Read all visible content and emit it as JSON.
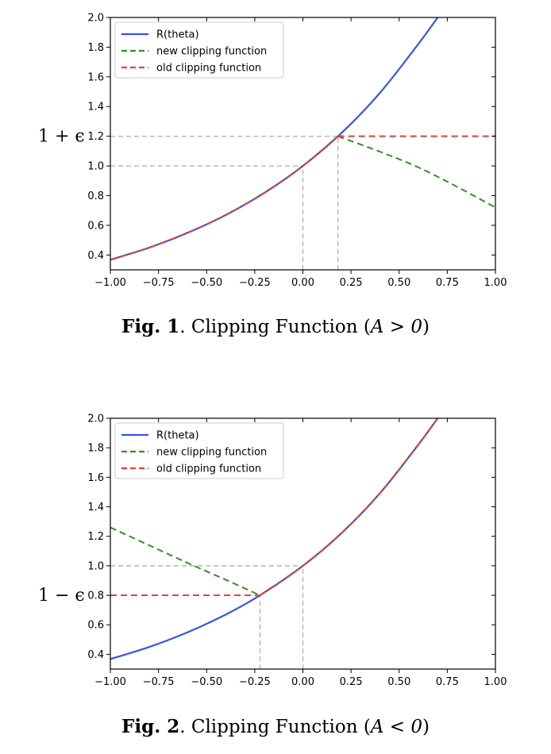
{
  "figures": [
    {
      "caption": {
        "label": "Fig. 1",
        "text": ". Clipping Function (",
        "math": "A > 0",
        "close": ")"
      },
      "eps_label": "1 + ϵ"
    },
    {
      "caption": {
        "label": "Fig. 2",
        "text": ". Clipping Function (",
        "math": "A < 0",
        "close": ")"
      },
      "eps_label": "1 − ϵ"
    }
  ],
  "chart_data": [
    {
      "type": "line",
      "xlim": [
        -1.0,
        1.0
      ],
      "ylim": [
        0.3,
        2.0
      ],
      "x_ticks": [
        -1.0,
        -0.75,
        -0.5,
        -0.25,
        0.0,
        0.25,
        0.5,
        0.75,
        1.0
      ],
      "x_tick_labels": [
        "−1.00",
        "−0.75",
        "−0.50",
        "−0.25",
        "0.00",
        "0.25",
        "0.50",
        "0.75",
        "1.00"
      ],
      "y_ticks": [
        0.4,
        0.6,
        0.8,
        1.0,
        1.2,
        1.4,
        1.6,
        1.8,
        2.0
      ],
      "y_tick_labels": [
        "0.4",
        "0.6",
        "0.8",
        "1.0",
        "1.2",
        "1.4",
        "1.6",
        "1.8",
        "2.0"
      ],
      "legend_position": "top-left",
      "series": [
        {
          "name": "R(theta)",
          "color": "#3355ee",
          "style": "solid",
          "x": [
            -1.0,
            -0.8,
            -0.6,
            -0.4,
            -0.2,
            0.0,
            0.2,
            0.4,
            0.6,
            0.7
          ],
          "y": [
            0.368,
            0.449,
            0.549,
            0.67,
            0.819,
            1.0,
            1.221,
            1.492,
            1.822,
            2.0
          ]
        },
        {
          "name": "new clipping function",
          "color": "#3a8a2e",
          "style": "dashed",
          "x": [
            -1.0,
            -0.8,
            -0.6,
            -0.4,
            -0.2,
            0.0,
            0.182,
            0.4,
            0.6,
            0.8,
            1.0
          ],
          "y": [
            0.368,
            0.449,
            0.549,
            0.67,
            0.819,
            1.0,
            1.2,
            1.096,
            0.99,
            0.86,
            0.72
          ]
        },
        {
          "name": "old clipping function",
          "color": "#ee3a3a",
          "style": "dashed",
          "x": [
            -1.0,
            -0.8,
            -0.6,
            -0.4,
            -0.2,
            0.0,
            0.182,
            0.5,
            1.0
          ],
          "y": [
            0.368,
            0.449,
            0.549,
            0.67,
            0.819,
            1.0,
            1.2,
            1.2,
            1.2
          ]
        }
      ],
      "reference_lines": [
        {
          "kind": "h",
          "y": 1.2,
          "x_from": -1.0,
          "x_to": 0.182
        },
        {
          "kind": "h",
          "y": 1.0,
          "x_from": -1.0,
          "x_to": 0.0
        },
        {
          "kind": "v",
          "x": 0.0,
          "y_from": 0.3,
          "y_to": 1.0
        },
        {
          "kind": "v",
          "x": 0.182,
          "y_from": 0.3,
          "y_to": 1.2
        }
      ],
      "eps_value": 1.2
    },
    {
      "type": "line",
      "xlim": [
        -1.0,
        1.0
      ],
      "ylim": [
        0.3,
        2.0
      ],
      "x_ticks": [
        -1.0,
        -0.75,
        -0.5,
        -0.25,
        0.0,
        0.25,
        0.5,
        0.75,
        1.0
      ],
      "x_tick_labels": [
        "−1.00",
        "−0.75",
        "−0.50",
        "−0.25",
        "0.00",
        "0.25",
        "0.50",
        "0.75",
        "1.00"
      ],
      "y_ticks": [
        0.4,
        0.6,
        0.8,
        1.0,
        1.2,
        1.4,
        1.6,
        1.8,
        2.0
      ],
      "y_tick_labels": [
        "0.4",
        "0.6",
        "0.8",
        "1.0",
        "1.2",
        "1.4",
        "1.6",
        "1.8",
        "2.0"
      ],
      "legend_position": "top-left",
      "series": [
        {
          "name": "R(theta)",
          "color": "#3355ee",
          "style": "solid",
          "x": [
            -1.0,
            -0.8,
            -0.6,
            -0.4,
            -0.223,
            0.0,
            0.2,
            0.4,
            0.6,
            0.7
          ],
          "y": [
            0.368,
            0.449,
            0.549,
            0.67,
            0.8,
            1.0,
            1.221,
            1.492,
            1.822,
            2.0
          ]
        },
        {
          "name": "new clipping function",
          "color": "#3a8a2e",
          "style": "dashed",
          "x": [
            -1.0,
            -0.8,
            -0.6,
            -0.4,
            -0.223,
            0.0,
            0.2,
            0.4,
            0.6,
            0.7
          ],
          "y": [
            1.26,
            1.14,
            1.02,
            0.905,
            0.8,
            1.0,
            1.221,
            1.492,
            1.822,
            2.0
          ]
        },
        {
          "name": "old clipping function",
          "color": "#ee3a3a",
          "style": "dashed",
          "x": [
            -1.0,
            -0.5,
            -0.223,
            0.0,
            0.2,
            0.4,
            0.6,
            0.7
          ],
          "y": [
            0.8,
            0.8,
            0.8,
            1.0,
            1.221,
            1.492,
            1.822,
            2.0
          ]
        }
      ],
      "reference_lines": [
        {
          "kind": "h",
          "y": 1.0,
          "x_from": -1.0,
          "x_to": 0.0
        },
        {
          "kind": "v",
          "x": 0.0,
          "y_from": 0.3,
          "y_to": 1.0
        },
        {
          "kind": "v",
          "x": -0.223,
          "y_from": 0.3,
          "y_to": 0.8
        }
      ],
      "eps_value": 0.8
    }
  ]
}
